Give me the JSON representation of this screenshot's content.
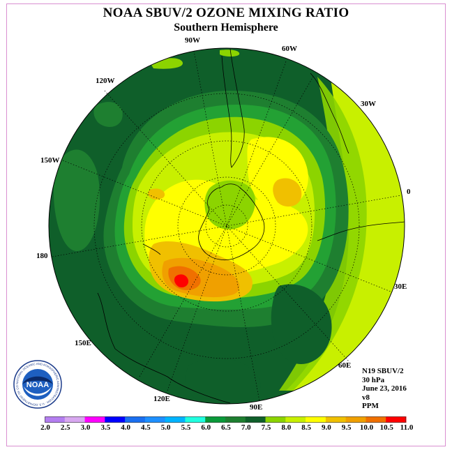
{
  "title": "NOAA SBUV/2 OZONE MIXING RATIO",
  "subtitle": "Southern Hemisphere",
  "longitude_labels": {
    "w90": "90W",
    "w60": "60W",
    "w30": "30W",
    "zero": "0",
    "e30": "30E",
    "e60": "60E",
    "e90": "90E",
    "e120": "120E",
    "e150": "150E",
    "d180": "180",
    "w150": "150W",
    "w120": "120W"
  },
  "info": {
    "satellite": "N19 SBUV/2",
    "pressure": "30 hPa",
    "date": "June 23, 2016",
    "version": "v8",
    "units": "PPM"
  },
  "logo": {
    "text": "NOAA",
    "ring_text": "NATIONAL OCEANIC AND ATMOSPHERIC ADMINISTRATION · U.S. DEPARTMENT OF COMMERCE ·"
  },
  "colorbar": {
    "ticks": [
      "2.0",
      "2.5",
      "3.0",
      "3.5",
      "4.0",
      "4.5",
      "5.0",
      "5.5",
      "6.0",
      "6.5",
      "7.0",
      "7.5",
      "8.0",
      "8.5",
      "9.0",
      "9.5",
      "10.0",
      "10.5",
      "11.0"
    ],
    "colors": [
      "#b47ef0",
      "#d8a8f0",
      "#ff00ff",
      "#0000ff",
      "#1a6ff0",
      "#1e90ff",
      "#00b4ff",
      "#20ffe0",
      "#0a9a3a",
      "#1e7f30",
      "#0f5f2a",
      "#8cd400",
      "#c8f000",
      "#ffff00",
      "#f0c000",
      "#f0a000",
      "#f07000",
      "#ff0000",
      "#8a4a30"
    ]
  },
  "map_colors": {
    "ocean_dark": "#0f5f2a",
    "green_mid": "#1e7f30",
    "green_light": "#23a134",
    "lime_dark": "#8cd400",
    "lime": "#c8f000",
    "yellow": "#ffff00",
    "gold": "#f0c000",
    "orange": "#f0a000",
    "orange_red": "#f07000",
    "red": "#ff0000"
  }
}
